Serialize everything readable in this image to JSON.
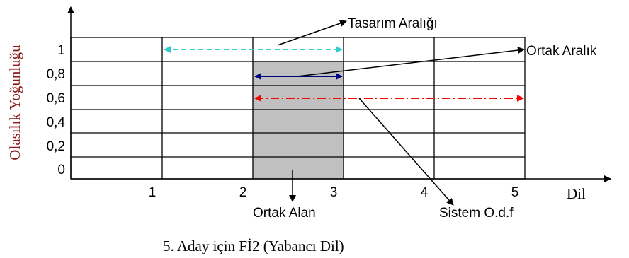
{
  "figure": {
    "y_axis_label": "Olasılık Yoğunluğu",
    "x_axis_label": "Dil",
    "caption": "5. Aday için Fİ2 (Yabancı Dil)",
    "y_ticks": [
      "1",
      "0,8",
      "0,6",
      "0,4",
      "0,2",
      "0"
    ],
    "x_ticks": [
      "1",
      "2",
      "3",
      "4",
      "5"
    ],
    "annotations": {
      "design_range": "Tasarım Aralığı",
      "common_range": "Ortak Aralık",
      "common_area": "Ortak Alan",
      "system_pdf": "Sistem O.d.f"
    },
    "ranges": {
      "design_range": {
        "from": 1.1,
        "to": 3.0,
        "level": "1",
        "color": "#33cccc",
        "style": "dashed"
      },
      "common_range": {
        "from": 2.1,
        "to": 3.0,
        "level": "0,8",
        "color": "#000080",
        "style": "solid"
      },
      "system_range": {
        "from": 2.1,
        "to": 5.0,
        "level": "0,6",
        "color": "#ff0000",
        "style": "dash-dot"
      },
      "common_area": {
        "from": 2.0,
        "to": 3.0,
        "fill": "#c0c0c0"
      }
    }
  }
}
